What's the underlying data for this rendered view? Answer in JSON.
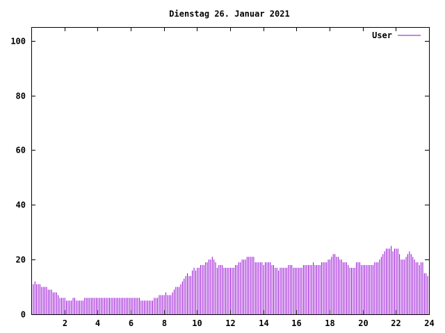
{
  "chart_data": {
    "type": "bar",
    "title": "Dienstag 26. Januar 2021",
    "xlabel": "",
    "ylabel": "",
    "xlim": [
      0,
      24
    ],
    "ylim": [
      0,
      105
    ],
    "xticks": [
      2,
      4,
      6,
      8,
      10,
      12,
      14,
      16,
      18,
      20,
      22,
      24
    ],
    "yticks": [
      0,
      20,
      40,
      60,
      80,
      100
    ],
    "grid": false,
    "legend_position": "top-right",
    "bar_color": "#9400d3",
    "series": [
      {
        "name": "User",
        "x_step_hours": 0.1,
        "values": [
          11,
          11,
          12,
          11,
          11,
          11,
          10,
          10,
          10,
          10,
          9,
          9,
          9,
          8,
          8,
          8,
          7,
          6,
          6,
          6,
          6,
          5,
          5,
          5,
          5,
          6,
          6,
          5,
          5,
          5,
          5,
          5,
          6,
          6,
          6,
          6,
          6,
          6,
          6,
          6,
          6,
          6,
          6,
          6,
          6,
          6,
          6,
          6,
          6,
          6,
          6,
          6,
          6,
          6,
          6,
          6,
          6,
          6,
          6,
          6,
          6,
          6,
          6,
          6,
          6,
          6,
          5,
          5,
          5,
          5,
          5,
          5,
          5,
          5,
          6,
          6,
          6,
          7,
          7,
          7,
          7,
          8,
          7,
          7,
          7,
          8,
          9,
          10,
          10,
          10,
          11,
          12,
          13,
          14,
          15,
          14,
          14,
          16,
          17,
          16,
          17,
          17,
          18,
          18,
          18,
          19,
          19,
          20,
          20,
          21,
          20,
          19,
          17,
          18,
          18,
          18,
          17,
          17,
          17,
          17,
          17,
          17,
          17,
          18,
          18,
          19,
          19,
          20,
          20,
          20,
          21,
          21,
          21,
          21,
          21,
          19,
          19,
          19,
          19,
          19,
          18,
          19,
          19,
          19,
          19,
          18,
          18,
          17,
          17,
          16,
          17,
          17,
          17,
          17,
          17,
          18,
          18,
          18,
          17,
          17,
          17,
          17,
          17,
          17,
          18,
          18,
          18,
          18,
          18,
          18,
          19,
          18,
          18,
          18,
          18,
          19,
          19,
          19,
          19,
          20,
          20,
          21,
          22,
          22,
          21,
          21,
          20,
          20,
          19,
          19,
          19,
          18,
          17,
          17,
          17,
          17,
          19,
          19,
          19,
          18,
          18,
          18,
          18,
          18,
          18,
          18,
          18,
          19,
          19,
          19,
          20,
          21,
          22,
          23,
          24,
          24,
          24,
          25,
          23,
          24,
          24,
          24,
          22,
          20,
          20,
          20,
          21,
          22,
          23,
          22,
          21,
          20,
          19,
          19,
          18,
          19,
          19,
          15,
          15,
          14
        ]
      }
    ]
  }
}
